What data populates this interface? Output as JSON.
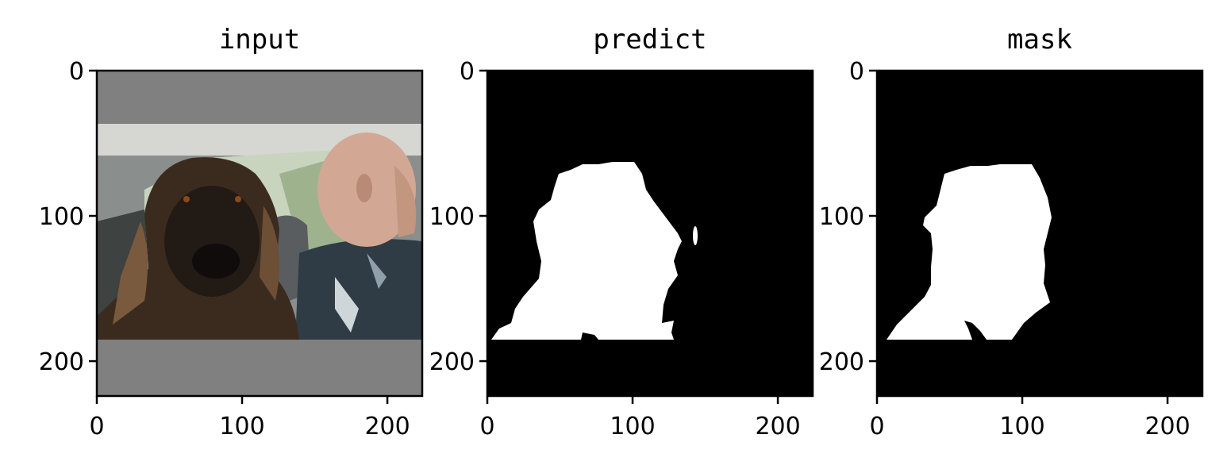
{
  "chart_data": [
    {
      "type": "image",
      "title": "input",
      "xlim": [
        0,
        224
      ],
      "ylim": [
        224,
        0
      ],
      "xticks": [
        0,
        100,
        200
      ],
      "yticks": [
        0,
        100,
        200
      ],
      "content": "photo of a dog and a bald man in a car, letterboxed with gray bars",
      "image_rows": [
        36,
        185
      ],
      "pad_color": "#808080"
    },
    {
      "type": "image",
      "title": "predict",
      "xlim": [
        0,
        224
      ],
      "ylim": [
        224,
        0
      ],
      "xticks": [
        0,
        100,
        200
      ],
      "yticks": [
        0,
        100,
        200
      ],
      "content": "binary segmentation mask (white foreground on black background)",
      "foreground_color": "#ffffff",
      "background_color": "#000000"
    },
    {
      "type": "image",
      "title": "mask",
      "xlim": [
        0,
        224
      ],
      "ylim": [
        224,
        0
      ],
      "xticks": [
        0,
        100,
        200
      ],
      "yticks": [
        0,
        100,
        200
      ],
      "content": "binary ground-truth mask (white foreground on black background)",
      "foreground_color": "#ffffff",
      "background_color": "#000000"
    }
  ]
}
